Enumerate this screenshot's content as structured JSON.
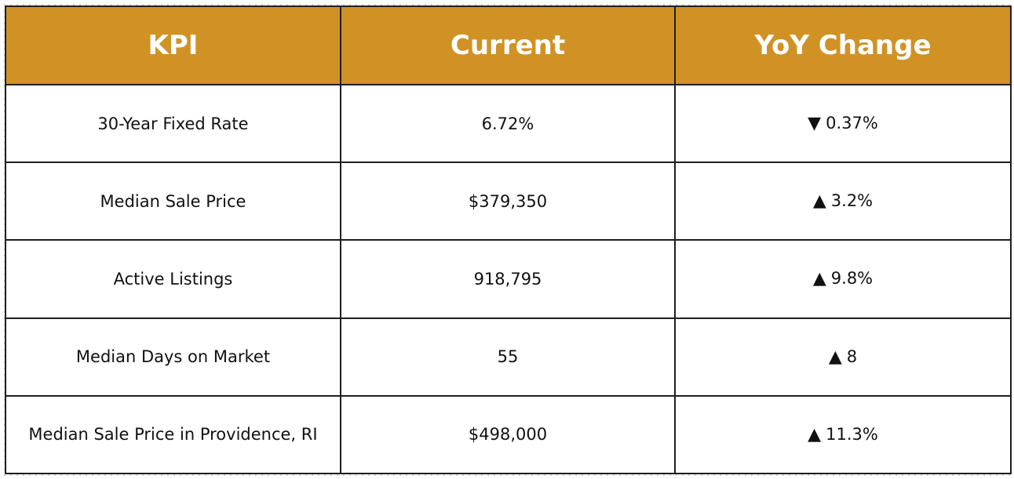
{
  "table": {
    "headers": [
      "KPI",
      "Current",
      "YoY Change"
    ],
    "rows": [
      {
        "kpi": "30-Year Fixed Rate",
        "current": "6.72%",
        "direction": "down",
        "arrow": "▼",
        "change": "0.37%"
      },
      {
        "kpi": "Median Sale Price",
        "current": "$379,350",
        "direction": "up",
        "arrow": "▲",
        "change": "3.2%"
      },
      {
        "kpi": "Active Listings",
        "current": "918,795",
        "direction": "up",
        "arrow": "▲",
        "change": "9.8%"
      },
      {
        "kpi": "Median Days on Market",
        "current": "55",
        "direction": "up",
        "arrow": "▲",
        "change": "8"
      },
      {
        "kpi": "Median Sale Price in Providence, RI",
        "current": "$498,000",
        "direction": "up",
        "arrow": "▲",
        "change": "11.3%"
      }
    ]
  },
  "colors": {
    "header_bg": "#d09224",
    "header_text": "#ffffff",
    "border": "#1e1e1e",
    "cell_text": "#111111"
  }
}
